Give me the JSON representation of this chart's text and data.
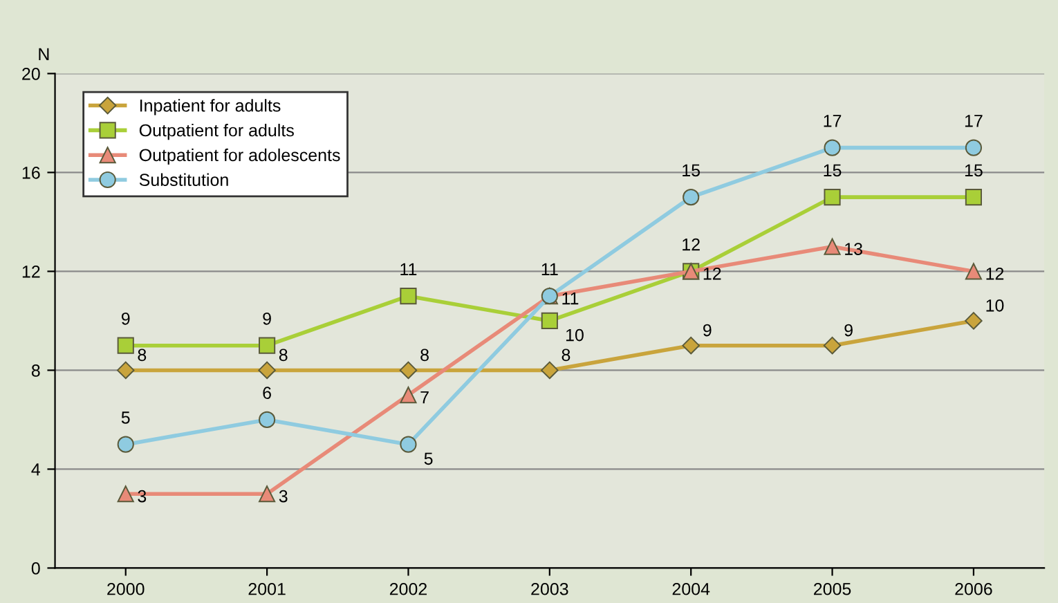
{
  "chart_data": {
    "type": "line",
    "ylabel": "N",
    "categories": [
      "2000",
      "2001",
      "2002",
      "2003",
      "2004",
      "2005",
      "2006"
    ],
    "series": [
      {
        "name": "Inpatient for adults",
        "color": "#c9a43c",
        "marker": "diamond",
        "values": [
          8,
          8,
          8,
          8,
          9,
          9,
          10
        ]
      },
      {
        "name": "Outpatient for adults",
        "color": "#a9cf38",
        "marker": "square",
        "values": [
          9,
          9,
          11,
          10,
          12,
          15,
          15
        ]
      },
      {
        "name": "Outpatient for adolescents",
        "color": "#e88a78",
        "marker": "triangle",
        "values": [
          3,
          3,
          7,
          11,
          12,
          13,
          12
        ]
      },
      {
        "name": "Substitution",
        "color": "#8fcbe0",
        "marker": "circle",
        "values": [
          5,
          6,
          5,
          11,
          15,
          17,
          17
        ]
      }
    ],
    "ylim": [
      0,
      20
    ],
    "yticks": [
      0,
      4,
      8,
      12,
      16,
      20
    ],
    "grid": "y",
    "legend": "top left",
    "data_labels": true
  }
}
